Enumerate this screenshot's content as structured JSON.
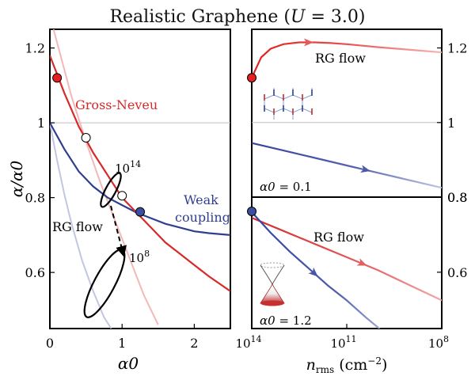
{
  "figure": {
    "title": "Realistic Graphene (U = 3.0)",
    "title_prefix": "Realistic Graphene (",
    "title_var": "U",
    "title_suffix": " = 3.0)"
  },
  "chart_data": [
    {
      "type": "line",
      "panel": "left",
      "xlabel": "α0",
      "ylabel": "α/α0",
      "xlim": [
        0,
        2.5
      ],
      "ylim": [
        0.45,
        1.25
      ],
      "xticks": [
        0,
        1,
        2
      ],
      "yticks": [
        0.6,
        0.8,
        1,
        1.2
      ],
      "xtick_labels": [
        "0",
        "1",
        "2"
      ],
      "ytick_labels": [
        "0.6",
        "0.8",
        "1",
        "1.2"
      ],
      "reference_line_y": 1,
      "grid": false,
      "series": [
        {
          "name": "Gross-Neveu",
          "color": "#d62a2a",
          "x": [
            0,
            0.2,
            0.4,
            0.6,
            0.8,
            1.0,
            1.2,
            1.4,
            1.6,
            1.8,
            2.0,
            2.2,
            2.5
          ],
          "y": [
            1.18,
            1.08,
            0.99,
            0.92,
            0.86,
            0.8,
            0.76,
            0.72,
            0.68,
            0.65,
            0.62,
            0.59,
            0.55
          ]
        },
        {
          "name": "Weak coupling",
          "color": "#2f3f8f",
          "x": [
            0,
            0.2,
            0.4,
            0.6,
            0.8,
            1.0,
            1.2,
            1.4,
            1.6,
            1.8,
            2.0,
            2.2,
            2.5
          ],
          "y": [
            1.0,
            0.93,
            0.87,
            0.83,
            0.8,
            0.78,
            0.76,
            0.745,
            0.73,
            0.72,
            0.71,
            0.705,
            0.7
          ]
        },
        {
          "name": "",
          "color": "#f2b8b8",
          "x": [
            0.05,
            0.3,
            0.5,
            0.7,
            0.9,
            1.1,
            1.3,
            1.5
          ],
          "y": [
            1.25,
            1.07,
            0.95,
            0.84,
            0.74,
            0.64,
            0.54,
            0.46
          ]
        },
        {
          "name": "",
          "color": "#c3c6e2",
          "x": [
            0,
            0.1,
            0.2,
            0.3,
            0.45,
            0.6,
            0.75,
            0.85
          ],
          "y": [
            1.0,
            0.9,
            0.81,
            0.73,
            0.63,
            0.55,
            0.48,
            0.45
          ]
        }
      ],
      "markers": [
        {
          "x": 0.1,
          "y": 1.12,
          "color": "#e62020"
        },
        {
          "x": 0.5,
          "y": 0.96,
          "color": "#ffffff"
        },
        {
          "x": 1.0,
          "y": 0.805,
          "color": "#ffffff"
        },
        {
          "x": 1.25,
          "y": 0.762,
          "color": "#3a4fa0"
        }
      ],
      "annotations": {
        "gross_neveu": "Gross-Neveu",
        "weak_coupling_1": "Weak",
        "weak_coupling_2": "coupling",
        "rg_flow": "RG flow",
        "scale_high_base": "10",
        "scale_high_exp": "14",
        "scale_low_base": "10",
        "scale_low_exp": "8"
      },
      "ellipses": [
        {
          "label": "10^14",
          "center": [
            0.85,
            0.806
          ],
          "width_x": 0.12,
          "height_y": 0.15
        },
        {
          "label": "10^8",
          "center": [
            0.7,
            0.545
          ],
          "width_x": 0.42,
          "height_y": 0.15
        }
      ]
    },
    {
      "type": "line",
      "panel": "top-right",
      "xscale": "log-reversed",
      "xlim": [
        100000000000000.0,
        100000000.0
      ],
      "ylim": [
        0.8,
        1.25
      ],
      "yticks": [
        0.8,
        1,
        1.2
      ],
      "ytick_labels": [
        "0.8",
        "1",
        "1.2"
      ],
      "reference_line_y": 1,
      "annotation": "RG flow",
      "label_prefix": "α0",
      "label_value": "0.1",
      "series": [
        {
          "name": "",
          "color": "#d62a2a",
          "x_log10": [
            14,
            13.7,
            13.4,
            13,
            12.5,
            12,
            11.5,
            11,
            10.5,
            10,
            9,
            8
          ],
          "y": [
            1.12,
            1.175,
            1.198,
            1.21,
            1.215,
            1.215,
            1.213,
            1.21,
            1.206,
            1.202,
            1.195,
            1.188
          ]
        },
        {
          "name": "",
          "color": "#3a4fa0",
          "x_log10": [
            14,
            13,
            12,
            11,
            10,
            9,
            8
          ],
          "y": [
            0.945,
            0.925,
            0.905,
            0.885,
            0.865,
            0.845,
            0.825
          ]
        }
      ],
      "markers": [
        {
          "x_log10": 14,
          "y": 1.12,
          "color": "#e62020"
        }
      ]
    },
    {
      "type": "line",
      "panel": "bottom-right",
      "xscale": "log-reversed",
      "xlim": [
        100000000000000.0,
        100000000.0
      ],
      "xticks_log10": [
        14,
        11,
        8
      ],
      "xtick_base": "10",
      "xtick_exponents": [
        "14",
        "11",
        "8"
      ],
      "ylim": [
        0.45,
        0.8
      ],
      "yticks": [
        0.6,
        0.8
      ],
      "ytick_labels": [
        "0.6",
        "0.8"
      ],
      "xlabel_var": "n",
      "xlabel_sub": "rms",
      "xlabel_unit": "(cm",
      "xlabel_exp": "−2",
      "xlabel_close": ")",
      "annotation": "RG flow",
      "label_prefix": "α0",
      "label_value": "1.2",
      "series": [
        {
          "name": "",
          "color": "#d62a2a",
          "x_log10": [
            14,
            13,
            12,
            11,
            10,
            9,
            8
          ],
          "y": [
            0.745,
            0.71,
            0.675,
            0.64,
            0.605,
            0.565,
            0.525
          ]
        },
        {
          "name": "",
          "color": "#3a4fa0",
          "x_log10": [
            14,
            13.4,
            12.8,
            12.2,
            11.6,
            11,
            10.4,
            9.9
          ],
          "y": [
            0.76,
            0.705,
            0.655,
            0.61,
            0.565,
            0.525,
            0.48,
            0.445
          ]
        }
      ],
      "markers": [
        {
          "x_log10": 14,
          "y": 0.762,
          "color": "#3a4fa0"
        }
      ]
    }
  ]
}
